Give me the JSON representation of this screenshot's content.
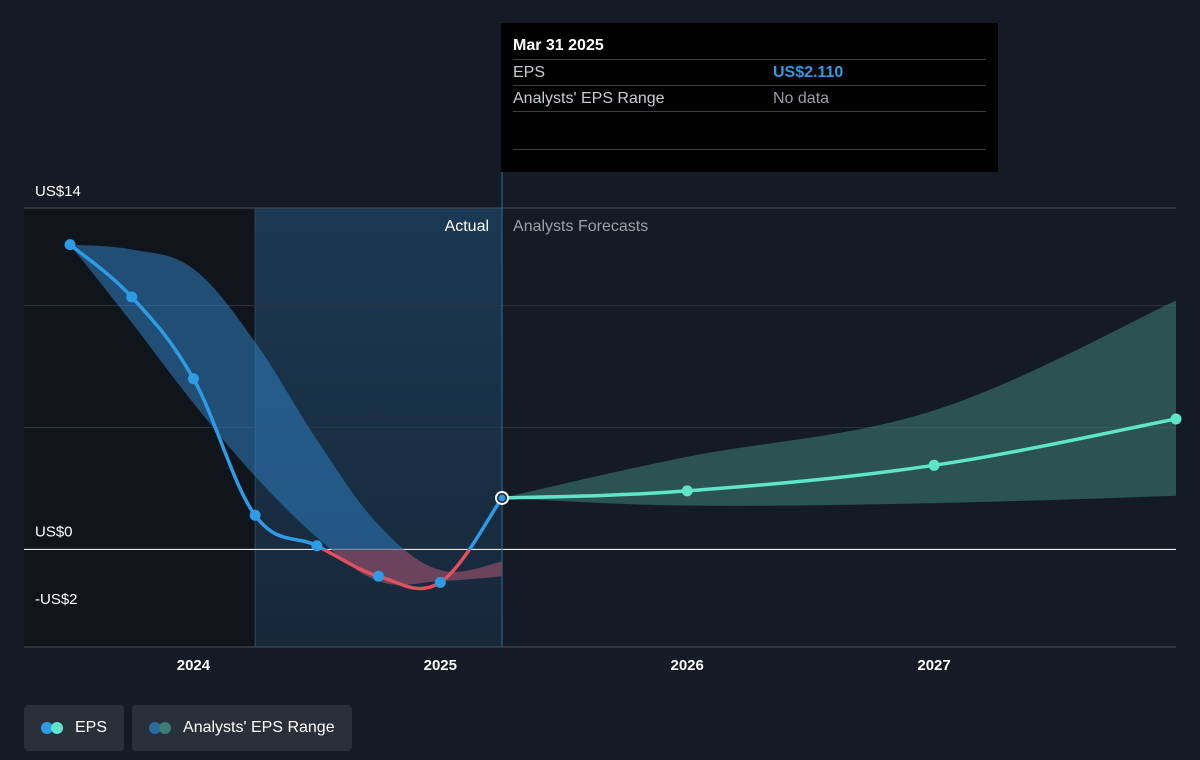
{
  "chart_data": {
    "type": "line",
    "y_unit": "US$",
    "ylim": [
      -4,
      14
    ],
    "y_ticks": [
      {
        "label": "US$14",
        "value": 14
      },
      {
        "label": "US$0",
        "value": 0
      },
      {
        "label": "-US$2",
        "value": -2
      }
    ],
    "x_ticks": [
      {
        "label": "2024",
        "value": 2024.0
      },
      {
        "label": "2025",
        "value": 2025.0
      },
      {
        "label": "2026",
        "value": 2026.0
      },
      {
        "label": "2027",
        "value": 2027.0
      }
    ],
    "zones": {
      "actual_label": "Actual",
      "forecast_label": "Analysts Forecasts",
      "divider_x": 2025.25
    },
    "series": [
      {
        "name": "EPS",
        "kind": "actual",
        "color": "#2e9be6",
        "negative_color": "#e0505d",
        "points": [
          {
            "x": 2023.5,
            "y": 12.5
          },
          {
            "x": 2023.75,
            "y": 10.35
          },
          {
            "x": 2024.0,
            "y": 7.0
          },
          {
            "x": 2024.25,
            "y": 1.4
          },
          {
            "x": 2024.5,
            "y": 0.15
          },
          {
            "x": 2024.75,
            "y": -1.1
          },
          {
            "x": 2025.0,
            "y": -1.35
          },
          {
            "x": 2025.25,
            "y": 2.11
          }
        ]
      },
      {
        "name": "EPS",
        "kind": "forecast",
        "color": "#5fe6c8",
        "points": [
          {
            "x": 2025.25,
            "y": 2.11
          },
          {
            "x": 2026.0,
            "y": 2.4
          },
          {
            "x": 2027.0,
            "y": 3.45
          },
          {
            "x": 2027.98,
            "y": 5.35
          }
        ]
      }
    ],
    "ranges": [
      {
        "name": "Analysts' EPS Range",
        "kind": "actual",
        "upper": [
          [
            2023.5,
            12.5
          ],
          [
            2023.75,
            12.3
          ],
          [
            2024.0,
            11.5
          ],
          [
            2024.25,
            8.5
          ],
          [
            2024.5,
            4.5
          ],
          [
            2024.75,
            1.0
          ],
          [
            2025.0,
            -0.85
          ],
          [
            2025.25,
            -0.5
          ]
        ],
        "lower": [
          [
            2023.5,
            12.5
          ],
          [
            2023.75,
            9.3
          ],
          [
            2024.0,
            6.0
          ],
          [
            2024.25,
            3.0
          ],
          [
            2024.5,
            0.5
          ],
          [
            2024.75,
            -1.3
          ],
          [
            2025.0,
            -1.3
          ],
          [
            2025.25,
            -1.1
          ]
        ]
      },
      {
        "name": "Analysts' EPS Range",
        "kind": "forecast",
        "upper": [
          [
            2025.25,
            2.11
          ],
          [
            2026.0,
            3.8
          ],
          [
            2027.0,
            5.7
          ],
          [
            2027.98,
            10.2
          ]
        ],
        "lower": [
          [
            2025.25,
            2.11
          ],
          [
            2026.0,
            1.8
          ],
          [
            2027.0,
            1.9
          ],
          [
            2027.98,
            2.2
          ]
        ]
      }
    ]
  },
  "tooltip": {
    "date": "Mar 31 2025",
    "rows": [
      {
        "label": "EPS",
        "value": "US$2.110"
      },
      {
        "label": "Analysts' EPS Range",
        "value": "No data"
      }
    ]
  },
  "legend": [
    {
      "label": "EPS",
      "icon": "eps-dots-icon",
      "colors": [
        "#2e9be6",
        "#5fe6c8"
      ]
    },
    {
      "label": "Analysts' EPS Range",
      "icon": "range-dots-icon",
      "colors": [
        "#2a6a9c",
        "#3c7d73"
      ]
    }
  ]
}
